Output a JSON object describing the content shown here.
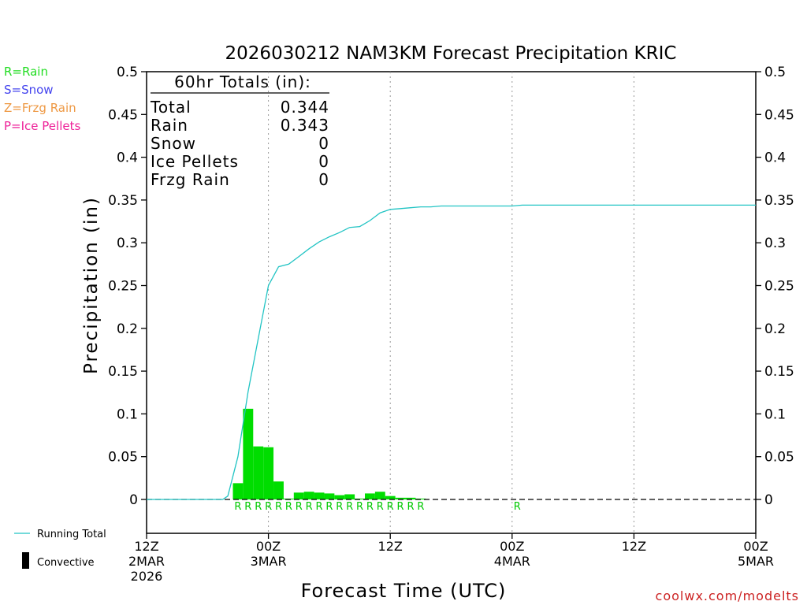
{
  "chart_data": {
    "type": "bar",
    "title": "2026030212 NAM3KM Forecast Precipitation KRIC",
    "xlabel": "Forecast Time (UTC)",
    "ylabel": "Precipitation (in)",
    "ylim": [
      -0.04,
      0.5
    ],
    "xlim_hours": [
      0,
      60
    ],
    "y_ticks": [
      "0.5",
      "0.45",
      "0.4",
      "0.35",
      "0.3",
      "0.25",
      "0.2",
      "0.15",
      "0.1",
      "0.05",
      "0"
    ],
    "x_ticks": [
      {
        "hour": 0,
        "lines": [
          "12Z",
          "2MAR",
          "2026"
        ]
      },
      {
        "hour": 12,
        "lines": [
          "00Z",
          "3MAR"
        ]
      },
      {
        "hour": 24,
        "lines": [
          "12Z"
        ]
      },
      {
        "hour": 36,
        "lines": [
          "00Z",
          "4MAR"
        ]
      },
      {
        "hour": 48,
        "lines": [
          "12Z"
        ]
      },
      {
        "hour": 60,
        "lines": [
          "00Z",
          "5MAR"
        ]
      }
    ],
    "gridlines_hours": [
      12,
      24,
      36,
      48
    ],
    "hourly_precip": {
      "name": "Rain",
      "color": "#00dd00",
      "hours": [
        9,
        10,
        11,
        12,
        13,
        14,
        15,
        16,
        17,
        18,
        19,
        20,
        21,
        22,
        23,
        24,
        25,
        26,
        27
      ],
      "values": [
        0.019,
        0.106,
        0.062,
        0.061,
        0.021,
        0.001,
        0.008,
        0.009,
        0.008,
        0.007,
        0.005,
        0.006,
        0.001,
        0.007,
        0.009,
        0.004,
        0.002,
        0.002,
        0.001
      ]
    },
    "running_total": {
      "name": "Running Total",
      "color": "#22c4c4",
      "hours": [
        0,
        7.5,
        8,
        9,
        10,
        11,
        12,
        13,
        14,
        15,
        16,
        17,
        18,
        19,
        20,
        21,
        22,
        23,
        24,
        25,
        26,
        27,
        28,
        29,
        30,
        31,
        32,
        33,
        34,
        35,
        36,
        37,
        60
      ],
      "values": [
        0,
        0,
        0.004,
        0.05,
        0.126,
        0.188,
        0.25,
        0.272,
        0.275,
        0.284,
        0.293,
        0.301,
        0.307,
        0.312,
        0.318,
        0.319,
        0.326,
        0.335,
        0.339,
        0.34,
        0.341,
        0.342,
        0.342,
        0.343,
        0.343,
        0.343,
        0.343,
        0.343,
        0.343,
        0.343,
        0.343,
        0.344,
        0.344
      ]
    },
    "ptype_markers": {
      "hours": [
        9,
        10,
        11,
        12,
        13,
        14,
        15,
        16,
        17,
        18,
        19,
        20,
        21,
        22,
        23,
        24,
        25,
        26,
        27,
        36.5
      ],
      "label": "R",
      "color": "#00c800"
    },
    "totals_box": {
      "heading": "60hr Totals (in):",
      "rows": [
        {
          "label": "Total",
          "value": "0.344"
        },
        {
          "label": "Rain",
          "value": "0.343"
        },
        {
          "label": "Snow",
          "value": "0"
        },
        {
          "label": "Ice Pellets",
          "value": "0"
        },
        {
          "label": "Frzg Rain",
          "value": "0"
        }
      ]
    },
    "ptype_legend": [
      {
        "text": "R=Rain",
        "color": "#22dd22"
      },
      {
        "text": "S=Snow",
        "color": "#4444ee"
      },
      {
        "text": "Z=Frzg Rain",
        "color": "#ee9944"
      },
      {
        "text": "P=Ice Pellets",
        "color": "#ee2299"
      }
    ],
    "bottom_legend": {
      "running_total": "Running Total",
      "convective": "Convective"
    },
    "credit": "coolwx.com/modelts",
    "credit_color": "#cc2222"
  }
}
